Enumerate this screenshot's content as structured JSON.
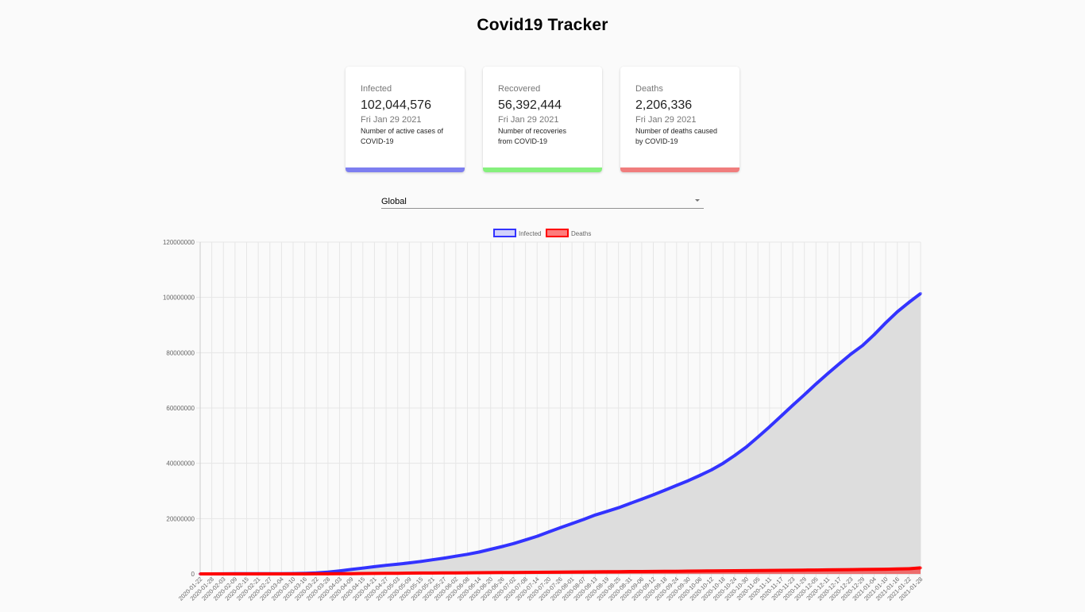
{
  "app": {
    "title": "Covid19 Tracker"
  },
  "cards": [
    {
      "label": "Infected",
      "value": "102,044,576",
      "date": "Fri Jan 29 2021",
      "desc_line1": "Number of active cases of",
      "desc_line2": "COVID-19",
      "color": "#7d7ef0"
    },
    {
      "label": "Recovered",
      "value": "56,392,444",
      "date": "Fri Jan 29 2021",
      "desc_line1": "Number of recoveries",
      "desc_line2": "from COVID-19",
      "color": "#86f07d"
    },
    {
      "label": "Deaths",
      "value": "2,206,336",
      "date": "Fri Jan 29 2021",
      "desc_line1": "Number of deaths caused",
      "desc_line2": "by COVID-19",
      "color": "#f07d7d"
    }
  ],
  "country_select": {
    "value": "Global"
  },
  "chart_data": {
    "type": "line",
    "title": "",
    "xlabel": "",
    "ylabel": "",
    "ylim": [
      0,
      120000000
    ],
    "yticks": [
      0,
      20000000,
      40000000,
      60000000,
      80000000,
      100000000,
      120000000
    ],
    "grid": true,
    "legend_position": "top",
    "x_tick_labels": [
      "2020-01-22",
      "2020-01-28",
      "2020-02-03",
      "2020-02-09",
      "2020-02-15",
      "2020-02-21",
      "2020-02-27",
      "2020-03-04",
      "2020-03-10",
      "2020-03-16",
      "2020-03-22",
      "2020-03-28",
      "2020-04-03",
      "2020-04-09",
      "2020-04-15",
      "2020-04-21",
      "2020-04-27",
      "2020-05-03",
      "2020-05-09",
      "2020-05-15",
      "2020-05-21",
      "2020-05-27",
      "2020-06-02",
      "2020-06-08",
      "2020-06-14",
      "2020-06-20",
      "2020-06-26",
      "2020-07-02",
      "2020-07-08",
      "2020-07-14",
      "2020-07-20",
      "2020-07-26",
      "2020-08-01",
      "2020-08-07",
      "2020-08-13",
      "2020-08-19",
      "2020-08-25",
      "2020-08-31",
      "2020-09-06",
      "2020-09-12",
      "2020-09-18",
      "2020-09-24",
      "2020-09-30",
      "2020-10-06",
      "2020-10-12",
      "2020-10-18",
      "2020-10-24",
      "2020-10-30",
      "2020-11-05",
      "2020-11-11",
      "2020-11-17",
      "2020-11-23",
      "2020-11-29",
      "2020-12-05",
      "2020-12-11",
      "2020-12-17",
      "2020-12-23",
      "2020-12-29",
      "2021-01-04",
      "2021-01-10",
      "2021-01-16",
      "2021-01-22",
      "2021-01-28"
    ],
    "series": [
      {
        "name": "Infected",
        "color": "#3333ff",
        "fill": "#dddddd",
        "values": [
          555,
          5578,
          28000,
          60000,
          69000,
          77000,
          83000,
          93000,
          118000,
          182000,
          337000,
          663000,
          1100000,
          1600000,
          2100000,
          2600000,
          3100000,
          3500000,
          4000000,
          4500000,
          5100000,
          5700000,
          6400000,
          7100000,
          7900000,
          8900000,
          9900000,
          11000000,
          12300000,
          13600000,
          15200000,
          16700000,
          18200000,
          19700000,
          21300000,
          22600000,
          23900000,
          25500000,
          27000000,
          28600000,
          30300000,
          32000000,
          33700000,
          35600000,
          37600000,
          40000000,
          42800000,
          45900000,
          49500000,
          53200000,
          57100000,
          61000000,
          64800000,
          68700000,
          72400000,
          76000000,
          79500000,
          82600000,
          86500000,
          90800000,
          94800000,
          98200000,
          101400000
        ]
      },
      {
        "name": "Deaths",
        "color": "#ff0000",
        "fill": "rgba(255,0,0,0.5)",
        "values": [
          17,
          133,
          565,
          1100,
          1600,
          2200,
          2800,
          3200,
          4200,
          7100,
          15000,
          32000,
          59000,
          100000,
          145000,
          180000,
          212000,
          244000,
          275000,
          306000,
          330000,
          355000,
          376000,
          400000,
          430000,
          460000,
          490000,
          520000,
          550000,
          580000,
          610000,
          640000,
          680000,
          710000,
          740000,
          770000,
          810000,
          850000,
          870000,
          900000,
          930000,
          960000,
          1000000,
          1040000,
          1080000,
          1110000,
          1150000,
          1180000,
          1210000,
          1250000,
          1290000,
          1330000,
          1370000,
          1410000,
          1450000,
          1500000,
          1550000,
          1600000,
          1650000,
          1700000,
          1790000,
          1870000,
          2180000
        ]
      }
    ]
  }
}
